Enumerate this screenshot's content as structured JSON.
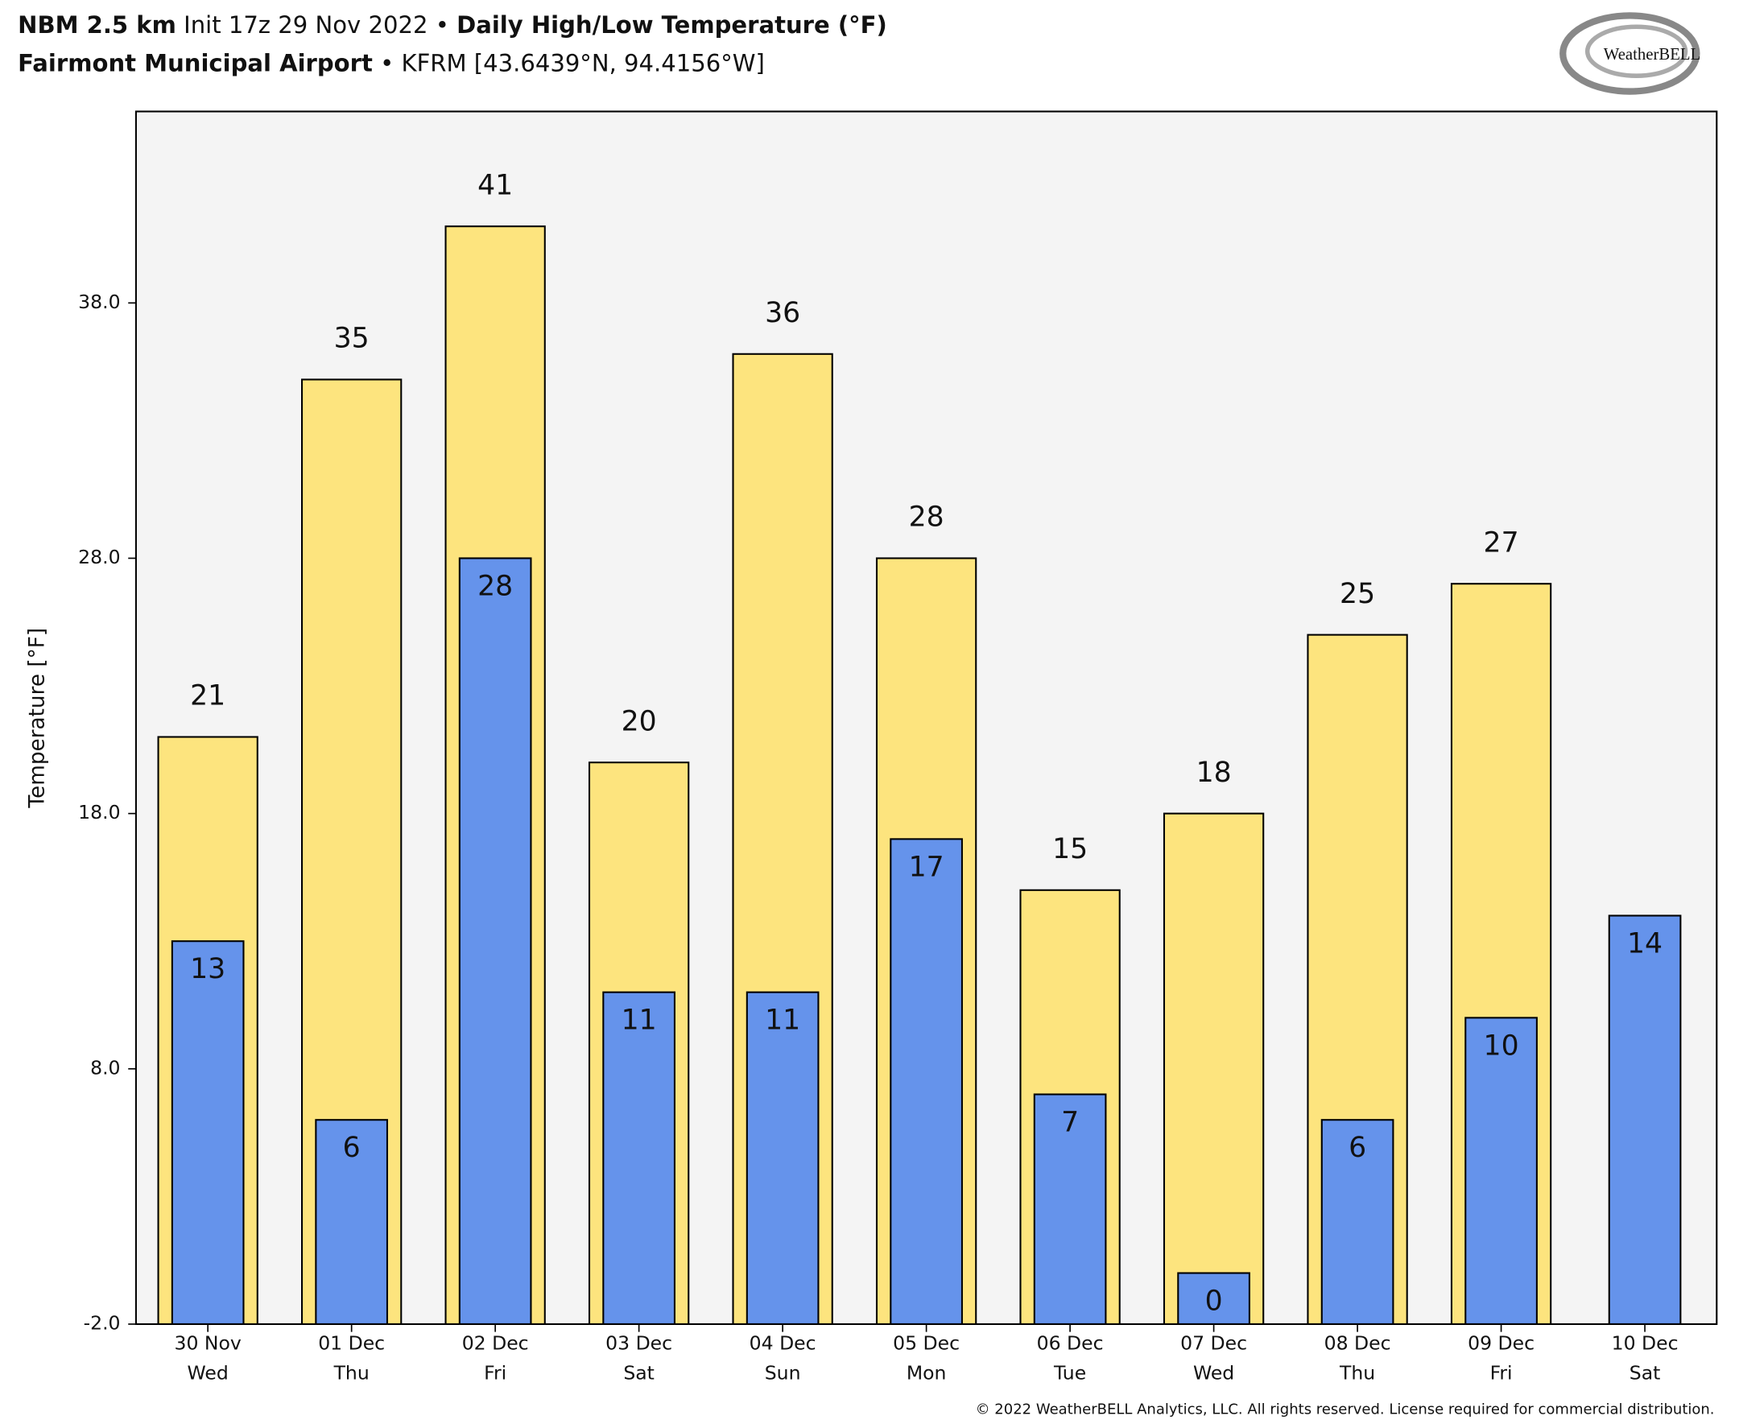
{
  "chart_data": {
    "type": "bar",
    "title_parts": [
      "NBM 2.5 km",
      "Init 17z 29 Nov 2022",
      "•",
      "Daily High/Low Temperature (°F)"
    ],
    "subtitle_parts": [
      "Fairmont Municipal Airport",
      "• KFRM [43.6439°N, 94.4156°W]"
    ],
    "logo": "WeatherBELL",
    "footer": "© 2022 WeatherBELL Analytics, LLC. All rights reserved. License required for commercial distribution.",
    "y_label": "Temperature [°F]",
    "categories": [
      [
        "30 Nov",
        "Wed"
      ],
      [
        "01 Dec",
        "Thu"
      ],
      [
        "02 Dec",
        "Fri"
      ],
      [
        "03 Dec",
        "Sat"
      ],
      [
        "04 Dec",
        "Sun"
      ],
      [
        "05 Dec",
        "Mon"
      ],
      [
        "06 Dec",
        "Tue"
      ],
      [
        "07 Dec",
        "Wed"
      ],
      [
        "08 Dec",
        "Thu"
      ],
      [
        "09 Dec",
        "Fri"
      ],
      [
        "10 Dec",
        "Sat"
      ]
    ],
    "series": [
      {
        "color": "#fde47e",
        "values": [
          21,
          35,
          41,
          20,
          36,
          28,
          15,
          18,
          25,
          27,
          null
        ]
      },
      {
        "color": "#6593eb",
        "values": [
          13,
          6,
          28,
          11,
          11,
          17,
          7,
          0,
          6,
          10,
          14
        ]
      }
    ],
    "ylim": [
      -2,
      45.5
    ],
    "yticks": [
      {
        "value": -2,
        "label": "-2.0"
      },
      {
        "value": 8,
        "label": "8.0"
      },
      {
        "value": 18,
        "label": "18.0"
      },
      {
        "value": 28,
        "label": "28.0"
      },
      {
        "value": 38,
        "label": "38.0"
      }
    ]
  }
}
